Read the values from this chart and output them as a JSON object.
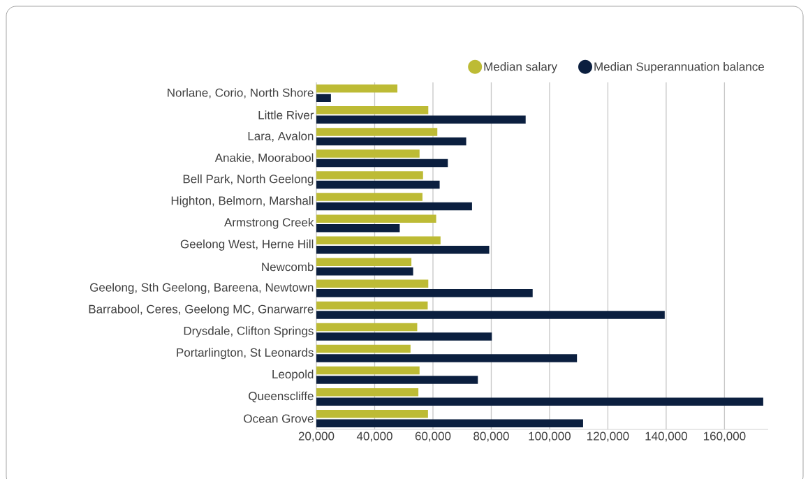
{
  "chart_data": {
    "type": "bar",
    "orientation": "horizontal",
    "grid": "x",
    "legend": "top",
    "categories": [
      "Norlane, Corio, North Shore",
      "Little River",
      "Lara, Avalon",
      "Anakie, Moorabool",
      "Bell Park, North Geelong",
      "Highton, Belmorn, Marshall",
      "Armstrong Creek",
      "Geelong West, Herne Hill",
      "Newcomb",
      "Geelong, Sth Geelong, Bareena, Newtown",
      "Barrabool, Ceres, Geelong MC, Gnarwarre",
      "Drysdale, Clifton Springs",
      "Portarlington, St Leonards",
      "Leopold",
      "Queenscliffe",
      "Ocean Grove"
    ],
    "series": [
      {
        "name": "Median salary",
        "color": "#bdbb35",
        "values": [
          47800,
          58400,
          61500,
          55400,
          56600,
          56400,
          61100,
          62600,
          52600,
          58400,
          58200,
          54600,
          52300,
          55400,
          55000,
          58300
        ]
      },
      {
        "name": "Median Superannuation balance",
        "color": "#0b1f3f",
        "values": [
          25000,
          91800,
          71400,
          65100,
          62300,
          73400,
          48600,
          79300,
          53200,
          94200,
          139500,
          80200,
          109400,
          75400,
          173300,
          111500
        ]
      }
    ],
    "xlim": [
      20000,
      175000
    ],
    "xticks": [
      {
        "value": 20000,
        "label": "20,000"
      },
      {
        "value": 40000,
        "label": "40,000"
      },
      {
        "value": 60000,
        "label": "60,000"
      },
      {
        "value": 80000,
        "label": "80,000"
      },
      {
        "value": 100000,
        "label": "100,000"
      },
      {
        "value": 120000,
        "label": "120,000"
      },
      {
        "value": 140000,
        "label": "140,000"
      },
      {
        "value": 160000,
        "label": "160,000"
      }
    ]
  }
}
